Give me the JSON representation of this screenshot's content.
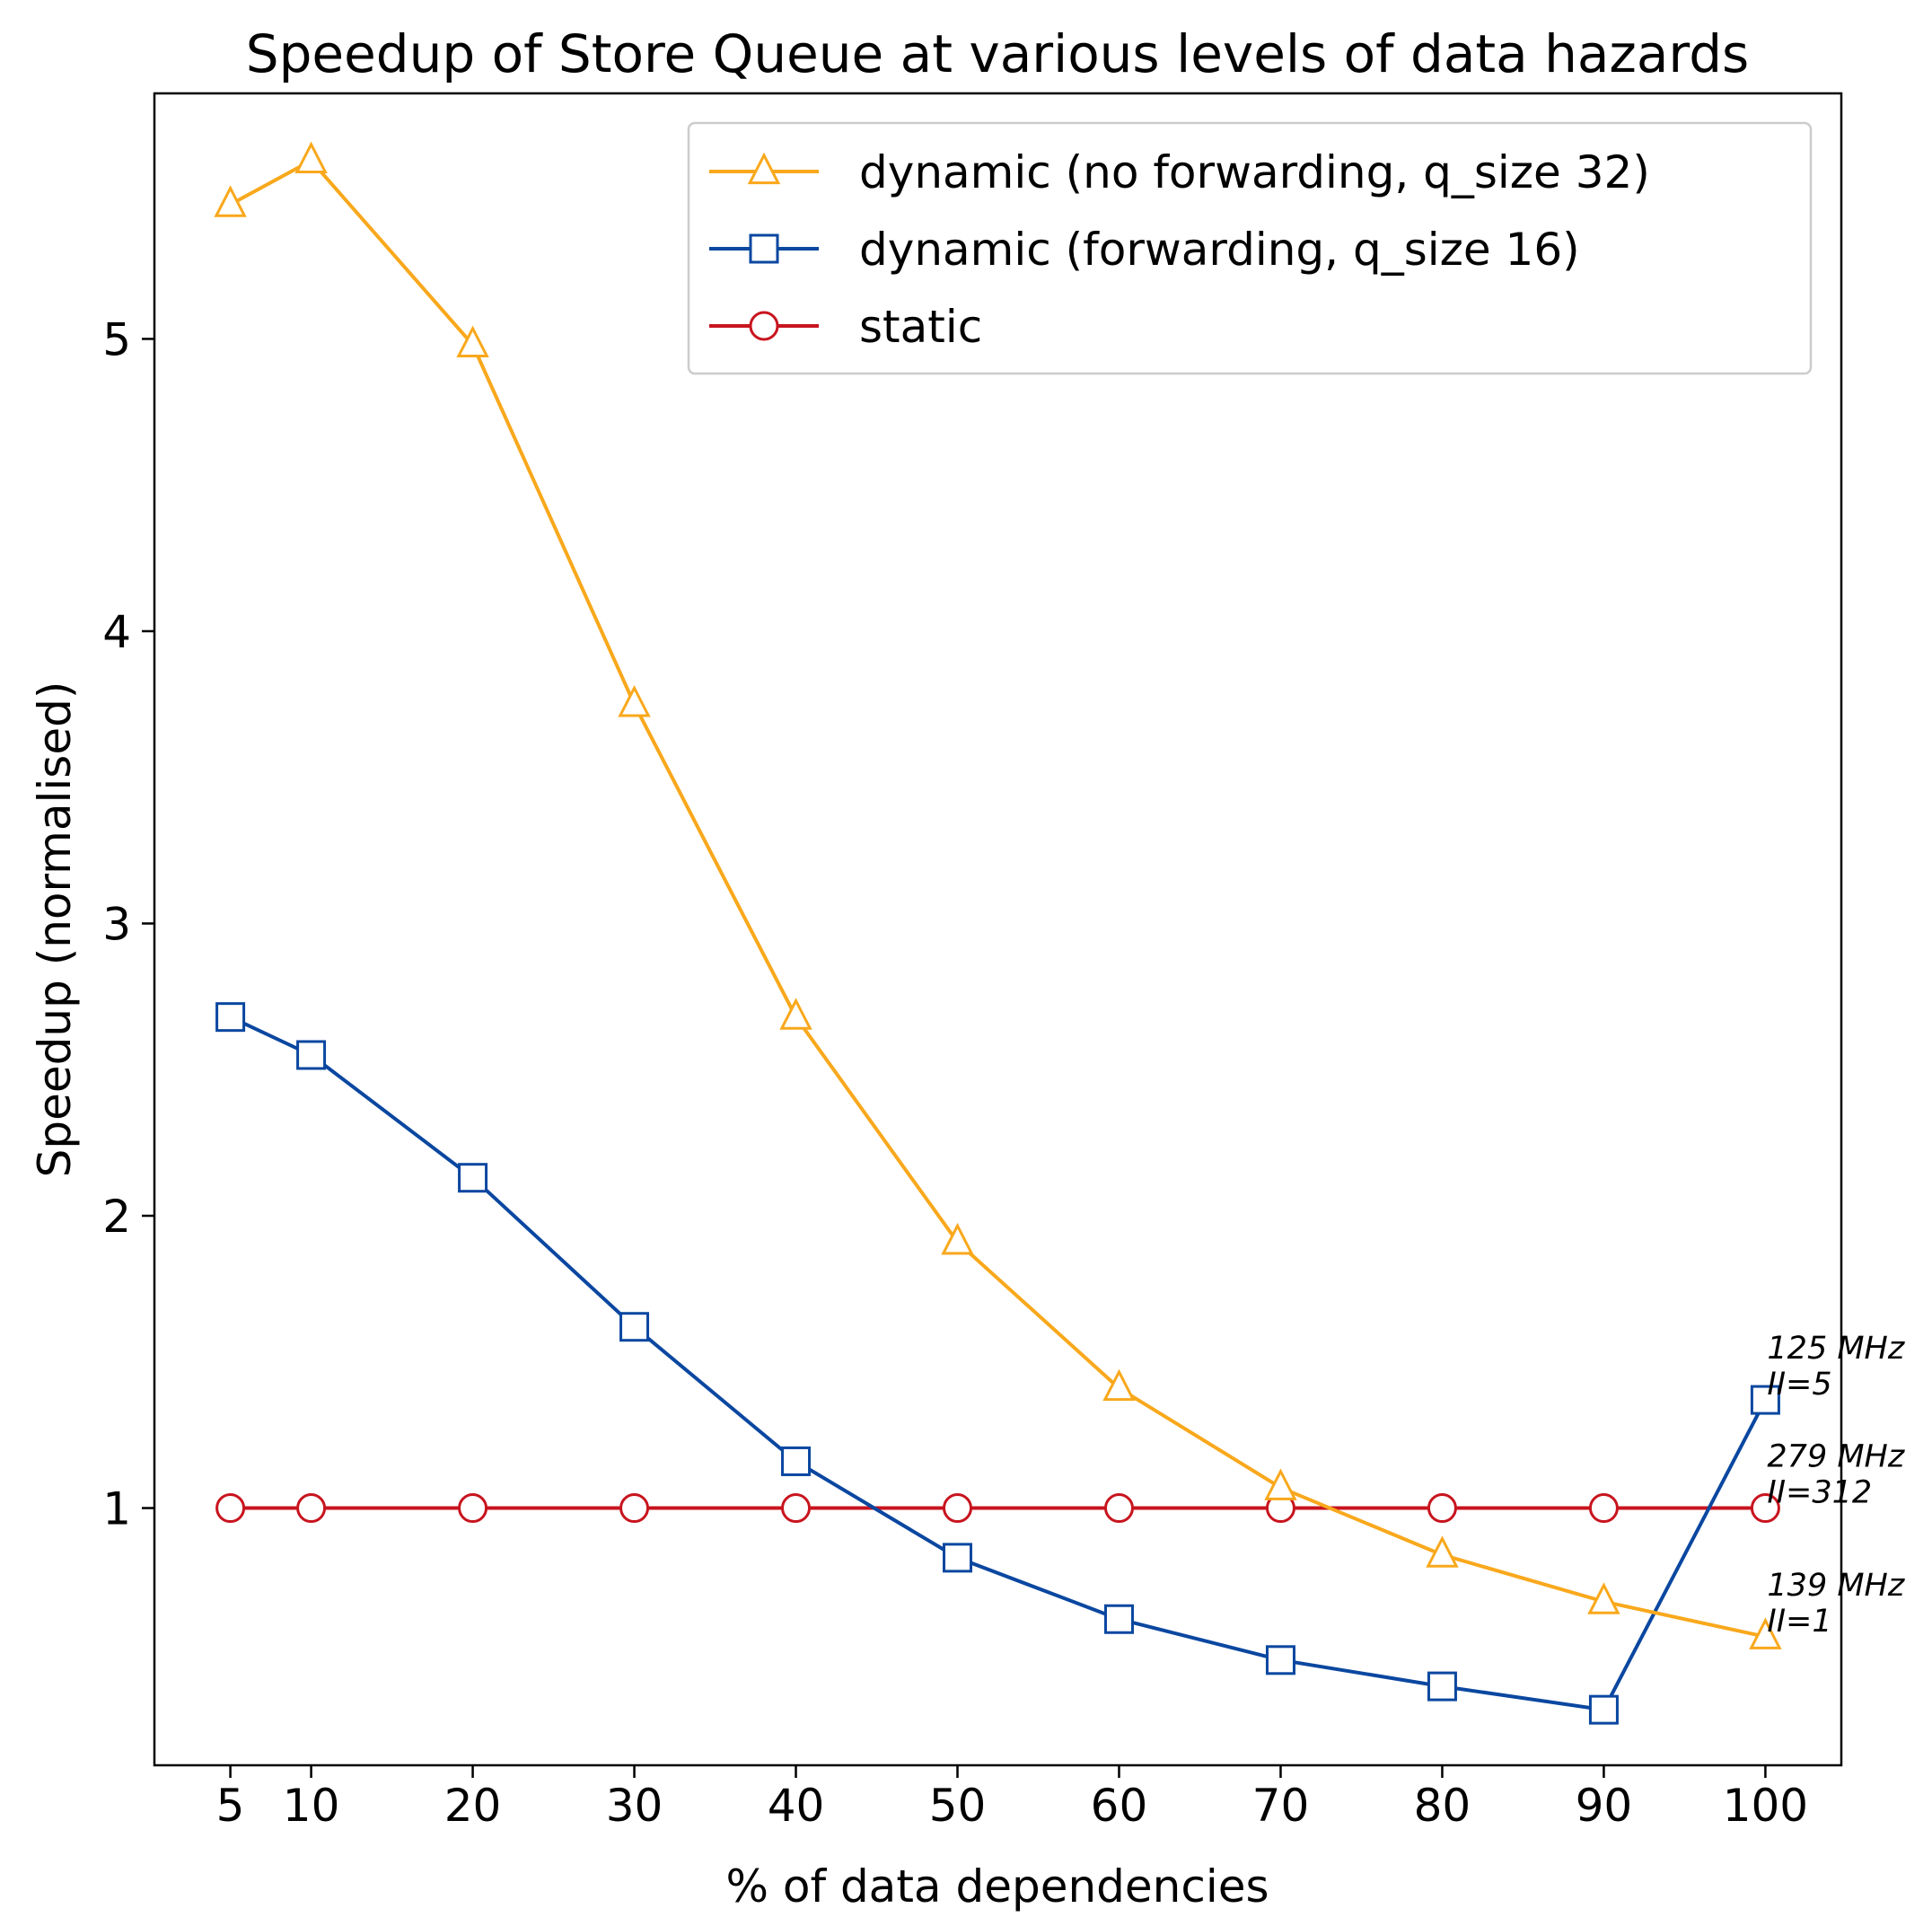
{
  "chart_data": {
    "type": "line",
    "title": "Speedup of Store Queue at various levels of data hazards",
    "xlabel": "% of data dependencies",
    "ylabel": "Speedup (normalised)",
    "x": [
      5,
      10,
      20,
      30,
      40,
      50,
      60,
      70,
      80,
      90,
      100
    ],
    "x_ticks": [
      5,
      10,
      20,
      30,
      40,
      50,
      60,
      70,
      80,
      90,
      100
    ],
    "y_ticks": [
      1,
      2,
      3,
      4,
      5
    ],
    "xlim": [
      0.3,
      104.7
    ],
    "ylim": [
      0.12,
      5.84
    ],
    "grid": false,
    "legend_position": "top-right",
    "series": [
      {
        "name": "dynamic (no forwarding, q_size 32)",
        "color": "#f9a81c",
        "marker": "triangle",
        "values": [
          5.46,
          5.61,
          4.98,
          3.75,
          2.68,
          1.91,
          1.41,
          1.07,
          0.84,
          0.68,
          0.56
        ]
      },
      {
        "name": "dynamic (forwarding, q_size 16)",
        "color": "#0a47a0",
        "marker": "square",
        "values": [
          2.68,
          2.55,
          2.13,
          1.62,
          1.16,
          0.83,
          0.62,
          0.48,
          0.39,
          0.31,
          1.37
        ]
      },
      {
        "name": "static",
        "color": "#c8141e",
        "marker": "circle",
        "values": [
          1.0,
          1.0,
          1.0,
          1.0,
          1.0,
          1.0,
          1.0,
          1.0,
          1.0,
          1.0,
          1.0
        ]
      }
    ],
    "annotations": [
      {
        "lines": [
          "125 MHz",
          "II=5"
        ],
        "x": 100,
        "y": 1.37
      },
      {
        "lines": [
          "279 MHz",
          "II=312"
        ],
        "x": 100,
        "y": 1.0
      },
      {
        "lines": [
          "139 MHz",
          "II=1"
        ],
        "x": 100,
        "y": 0.56
      }
    ]
  }
}
